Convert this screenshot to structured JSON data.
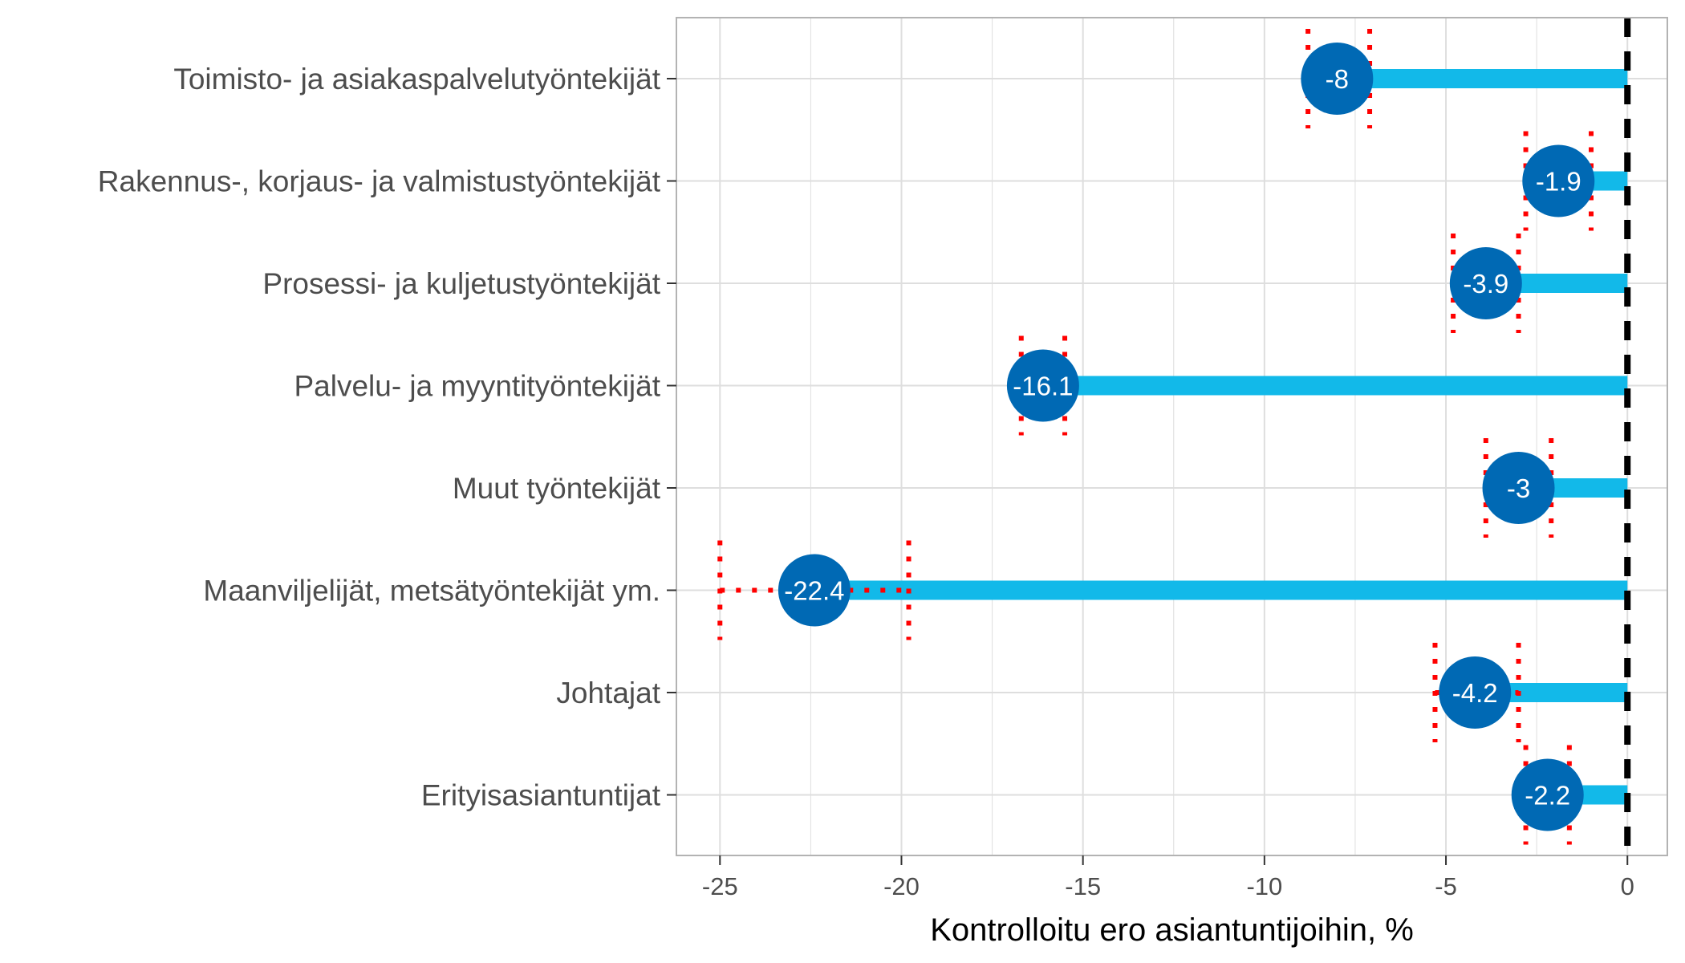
{
  "chart_data": {
    "type": "bar",
    "orientation": "horizontal",
    "categories": [
      "Toimisto- ja asiakaspalvelutyöntekijät",
      "Rakennus-, korjaus- ja valmistustyöntekijät",
      "Prosessi- ja kuljetustyöntekijät",
      "Palvelu- ja myyntityöntekijät",
      "Muut työntekijät",
      "Maanviljelijät, metsätyöntekijät ym.",
      "Johtajat",
      "Erityisasiantuntijat"
    ],
    "values": [
      -8,
      -1.9,
      -3.9,
      -16.1,
      -3,
      -22.4,
      -4.2,
      -2.2
    ],
    "value_labels": [
      "-8",
      "-1.9",
      "-3.9",
      "-16.1",
      "-3",
      "-22.4",
      "-4.2",
      "-2.2"
    ],
    "interval_low": [
      -8.8,
      -2.8,
      -4.8,
      -16.7,
      -3.9,
      -25.0,
      -5.3,
      -2.8
    ],
    "interval_high": [
      -7.1,
      -1.0,
      -3.0,
      -15.5,
      -2.1,
      -19.8,
      -3.0,
      -1.6
    ],
    "xlabel": "Kontrolloitu ero asiantuntijoihin, %",
    "ylabel": "",
    "xlim": [
      -26.2,
      1.1
    ],
    "xticks": [
      -25,
      -20,
      -15,
      -10,
      -5,
      0
    ],
    "xtick_labels": [
      "-25",
      "-20",
      "-15",
      "-10",
      "-5",
      "0"
    ],
    "reference_line": 0,
    "grid": true,
    "legend": "none",
    "colors": {
      "bar": "#12B9E9",
      "point": "#0069B4",
      "interval": "#FF0000",
      "reference": "#000000",
      "grid": "#DEDEDE",
      "panel_border": "#B3B3B3"
    }
  }
}
